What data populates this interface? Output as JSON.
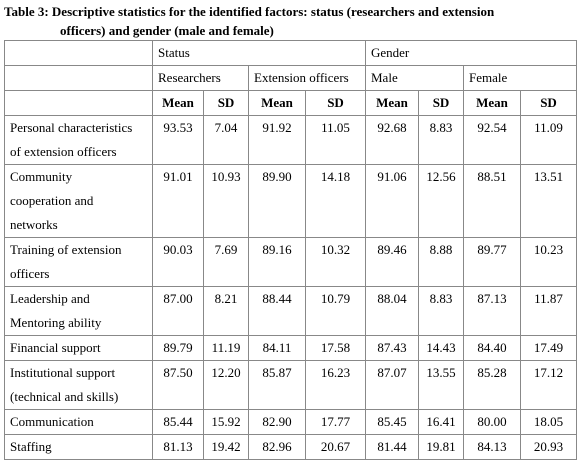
{
  "title": [
    "Table 3:  Descriptive statistics for the identified factors: status (researchers and extension",
    "officers) and gender (male and female)"
  ],
  "header": {
    "groups": [
      "Status",
      "Gender"
    ],
    "subgroups": [
      "Researchers",
      "Extension officers",
      "Male",
      "Female"
    ],
    "stats": [
      "Mean",
      "SD"
    ]
  },
  "rows": [
    {
      "label": [
        "Personal characteristics",
        "of extension officers"
      ],
      "values": [
        "93.53",
        "7.04",
        "91.92",
        "11.05",
        "92.68",
        "8.83",
        "92.54",
        "11.09"
      ]
    },
    {
      "label": [
        "Community",
        "cooperation and",
        "networks"
      ],
      "values": [
        "91.01",
        "10.93",
        "89.90",
        "14.18",
        "91.06",
        "12.56",
        "88.51",
        "13.51"
      ]
    },
    {
      "label": [
        "Training of extension",
        "officers"
      ],
      "values": [
        "90.03",
        "7.69",
        "89.16",
        "10.32",
        "89.46",
        "8.88",
        "89.77",
        "10.23"
      ]
    },
    {
      "label": [
        "Leadership and",
        "Mentoring ability"
      ],
      "values": [
        "87.00",
        "8.21",
        "88.44",
        "10.79",
        "88.04",
        "8.83",
        "87.13",
        "11.87"
      ]
    },
    {
      "label": [
        "Financial support"
      ],
      "values": [
        "89.79",
        "11.19",
        "84.11",
        "17.58",
        "87.43",
        "14.43",
        "84.40",
        "17.49"
      ]
    },
    {
      "label": [
        "Institutional support",
        "(technical and skills)"
      ],
      "values": [
        "87.50",
        "12.20",
        "85.87",
        "16.23",
        "87.07",
        "13.55",
        "85.28",
        "17.12"
      ]
    },
    {
      "label": [
        "Communication"
      ],
      "values": [
        "85.44",
        "15.92",
        "82.90",
        "17.77",
        "85.45",
        "16.41",
        "80.00",
        "18.05"
      ]
    },
    {
      "label": [
        "Staffing"
      ],
      "values": [
        "81.13",
        "19.42",
        "82.96",
        "20.67",
        "81.44",
        "19.81",
        "84.13",
        "20.93"
      ]
    }
  ]
}
